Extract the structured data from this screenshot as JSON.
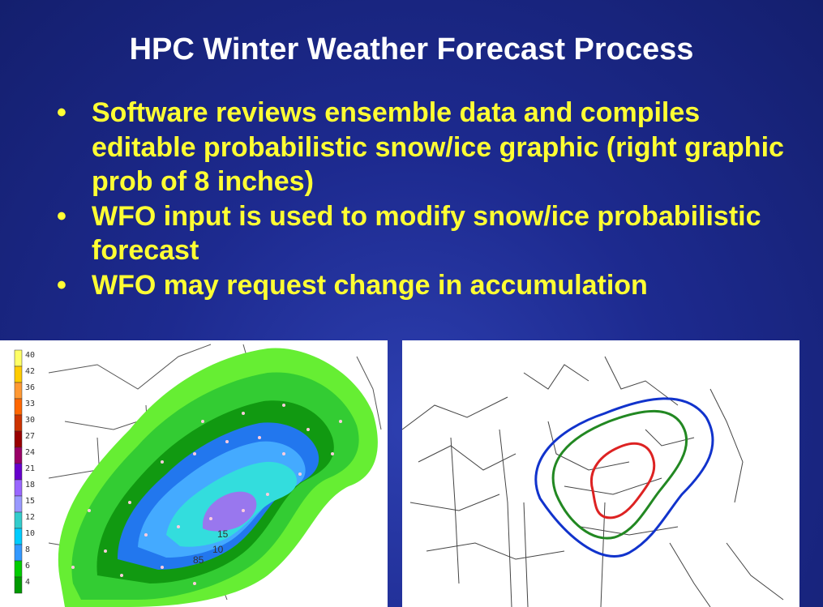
{
  "slide": {
    "title": "HPC Winter Weather Forecast Process",
    "bullets": [
      "Software reviews ensemble data and compiles editable probabilistic snow/ice graphic (right graphic prob of 8 inches)",
      "WFO input is used to modify snow/ice probabilistic forecast",
      "WFO may request change in accumulation"
    ]
  },
  "left_map": {
    "legend_values": [
      "40",
      "42",
      "36",
      "33",
      "30",
      "27",
      "24",
      "21",
      "18",
      "15",
      "12",
      "10",
      "8",
      "6",
      "4"
    ],
    "legend_colors": [
      "#ffff66",
      "#ffcc00",
      "#ff9933",
      "#ff6600",
      "#cc3300",
      "#990000",
      "#990066",
      "#6600cc",
      "#9966ff",
      "#9999ff",
      "#33cccc",
      "#00ccff",
      "#3399ff",
      "#00cc00",
      "#009900"
    ],
    "contour_labels": [
      "15",
      "10",
      "85"
    ]
  },
  "colors": {
    "title": "#ffffff",
    "bullet": "#ffff33",
    "contour_red": "#dd2222",
    "contour_green": "#228822",
    "contour_blue": "#1133cc"
  }
}
